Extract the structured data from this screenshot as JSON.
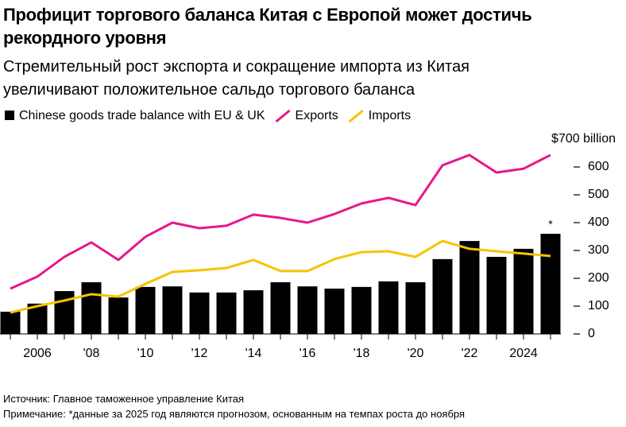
{
  "chart_data": {
    "type": "bar",
    "title": "Профицит торгового баланса Китая с Европой может достичь рекордного уровня",
    "subtitle": "Стремительный рост экспорта и сокращение импорта из Китая увеличивают положительное сальдо торгового баланса",
    "categories": [
      null,
      "2006",
      null,
      "'08",
      null,
      "'10",
      null,
      "'12",
      null,
      "'14",
      null,
      "'16",
      null,
      "'18",
      null,
      "'20",
      null,
      "'22",
      null,
      "2024",
      null
    ],
    "series": [
      {
        "name": "Chinese goods trade balance with EU & UK",
        "type": "bar",
        "color": "#000000",
        "values": [
          80,
          109,
          154,
          186,
          131,
          169,
          171,
          149,
          149,
          157,
          186,
          171,
          163,
          169,
          189,
          186,
          269,
          334,
          277,
          306,
          360
        ]
      },
      {
        "name": "Exports",
        "type": "line",
        "color": "#e8178a",
        "values": [
          163,
          206,
          277,
          329,
          266,
          349,
          400,
          380,
          389,
          429,
          417,
          400,
          431,
          469,
          489,
          463,
          606,
          643,
          580,
          594,
          643
        ]
      },
      {
        "name": "Imports",
        "type": "line",
        "color": "#f5c400",
        "values": [
          77,
          100,
          120,
          143,
          134,
          180,
          223,
          229,
          237,
          266,
          226,
          226,
          269,
          294,
          297,
          277,
          334,
          306,
          297,
          289,
          280
        ]
      }
    ],
    "ylim": [
      0,
      700
    ],
    "yticks": [
      0,
      100,
      200,
      300,
      400,
      500,
      600,
      {
        "value": 700,
        "label": "$700 billion"
      }
    ],
    "annotation": "*",
    "source": "Источник: Главное таможенное управление Китая",
    "note": "Примечание: *данные за 2025 год являются прогнозом, основанным на темпах роста до ноября"
  }
}
